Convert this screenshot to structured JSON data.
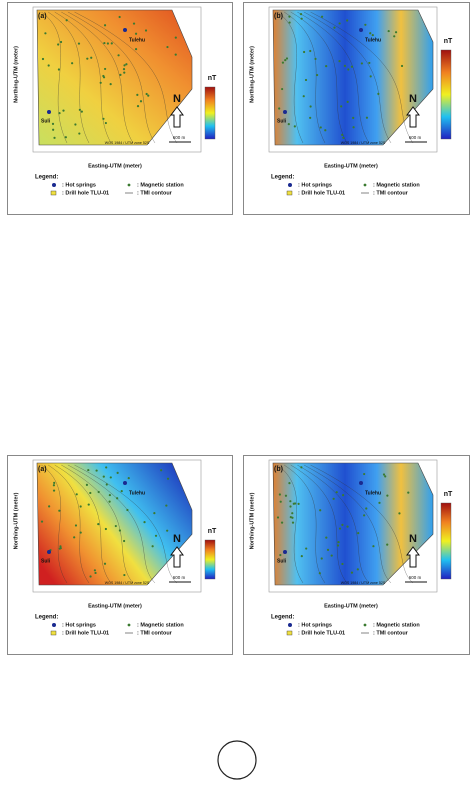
{
  "figures": [
    {
      "panels": [
        {
          "label": "(a)",
          "place_labels": [
            "Tulehu",
            "Suli"
          ],
          "north": "N",
          "scale_bar": "600 m",
          "crs": "WGS 1984 / UTM zone 52S",
          "x_axis_title": "Easting-UTM (meter)",
          "y_axis_title": "Northing-UTM (meter)",
          "colorbar_unit": "nT",
          "legend": {
            "title": "Legend:",
            "items": [
              ": Hot springs",
              ": Magnetic station",
              ": Drill hole TLU-01",
              ": TMI contour"
            ]
          }
        },
        {
          "label": "(b)",
          "place_labels": [
            "Tulehu",
            "Suli"
          ],
          "north": "N",
          "scale_bar": "600 m",
          "crs": "WGS 1984 / UTM zone 52S",
          "x_axis_title": "Easting-UTM (meter)",
          "y_axis_title": "Northing-UTM (meter)",
          "colorbar_unit": "nT",
          "legend": {
            "title": "Legend:",
            "items": [
              ": Hot springs",
              ": Magnetic station",
              ": Drill hole TLU-01",
              ": TMI contour"
            ]
          }
        }
      ]
    },
    {
      "panels": [
        {
          "label": "(a)",
          "place_labels": [
            "Tulehu",
            "Suli"
          ],
          "north": "N",
          "scale_bar": "600 m",
          "crs": "WGS 1984 / UTM zone 52S",
          "x_axis_title": "Easting-UTM (meter)",
          "y_axis_title": "Northing-UTM (meter)",
          "colorbar_unit": "nT",
          "legend": {
            "title": "Legend:",
            "items": [
              ": Hot springs",
              ": Magnetic station",
              ": Drill hole TLU-01",
              ": TMI contour"
            ]
          }
        },
        {
          "label": "(b)",
          "place_labels": [
            "Tulehu",
            "Suli"
          ],
          "north": "N",
          "scale_bar": "600 m",
          "crs": "WGS 1984 / UTM zone 52S",
          "x_axis_title": "Easting-UTM (meter)",
          "y_axis_title": "Northing-UTM (meter)",
          "colorbar_unit": "nT",
          "legend": {
            "title": "Legend:",
            "items": [
              ": Hot springs",
              ": Magnetic station",
              ": Drill hole TLU-01",
              ": TMI contour"
            ]
          }
        }
      ]
    }
  ]
}
